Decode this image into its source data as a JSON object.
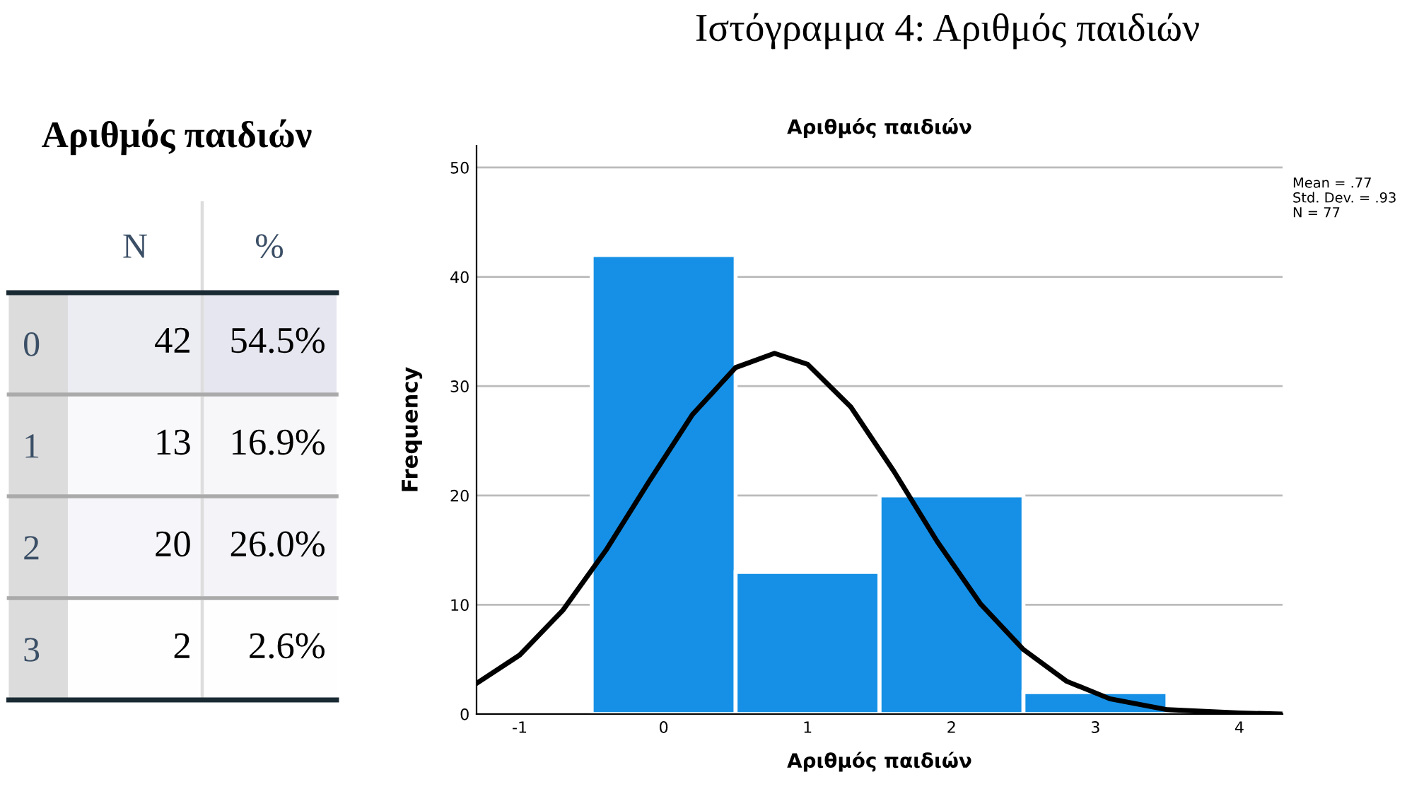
{
  "chart_data": [
    {
      "type": "heatmap",
      "title": "Αριθμός παιδιών",
      "categories": [
        "N",
        "%"
      ],
      "y_categories": [
        "0",
        "1",
        "2",
        "3"
      ],
      "cells": [
        [
          42,
          54.5
        ],
        [
          13,
          16.9
        ],
        [
          20,
          26.0
        ],
        [
          2,
          2.6
        ]
      ],
      "cell_labels": [
        [
          "42",
          "54.5%"
        ],
        [
          "13",
          "16.9%"
        ],
        [
          "20",
          "26.0%"
        ],
        [
          "2",
          "2.6%"
        ]
      ],
      "color": "#e6e6f0"
    },
    {
      "type": "histogram",
      "title": "Αριθμός παιδιών",
      "xlabel": "Αριθμός παιδιών",
      "ylabel": "Frequency",
      "bins": [
        -0.5,
        0.5,
        1.5,
        2.5,
        3.5
      ],
      "values": [
        42,
        13,
        20,
        2
      ],
      "color": "#1590e6",
      "series": [
        {
          "type": "line",
          "color": "#000000",
          "x": [
            -1.3,
            -1.0,
            -0.7,
            -0.4,
            -0.1,
            0.2,
            0.5,
            0.77,
            1.0,
            1.3,
            1.6,
            1.9,
            2.2,
            2.5,
            2.8,
            3.1,
            3.5,
            4.0,
            4.3
          ],
          "values": [
            2.8,
            5.4,
            9.5,
            15.0,
            21.3,
            27.4,
            31.7,
            33.0,
            32.0,
            28.1,
            22.2,
            15.8,
            10.1,
            5.9,
            3.0,
            1.4,
            0.4,
            0.1,
            0.0
          ]
        }
      ],
      "xlim": [
        -1.3,
        4.3
      ],
      "xticks": [
        {
          "value": -1,
          "label": "-1"
        },
        0,
        1,
        2,
        3,
        4
      ],
      "ylim": [
        0,
        52
      ],
      "yticks": [
        0,
        10,
        20,
        30,
        40,
        50
      ],
      "grid": "y",
      "annotations": [
        "Ιστόγραμμα 4: Αριθμός παιδιών",
        "Mean = .77",
        "Std. Dev. = .93",
        "N = 77"
      ]
    }
  ]
}
